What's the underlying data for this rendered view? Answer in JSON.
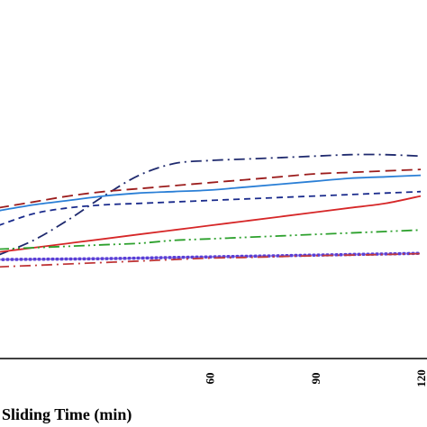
{
  "chart_data": {
    "type": "line",
    "title": "",
    "xlabel": "Sliding Time (min)",
    "ylabel": "",
    "xlim": [
      0,
      120
    ],
    "ylim": [
      0,
      1
    ],
    "x_ticks": [
      60,
      90,
      120
    ],
    "x_tick_labels": [
      "60",
      "90",
      "120"
    ],
    "grid": false,
    "legend": "none",
    "series": [
      {
        "color": "#1f2a6e",
        "style": "dash-dot",
        "x": [
          0,
          10,
          20,
          30,
          40,
          50,
          60,
          70,
          80,
          90,
          100,
          110,
          120
        ],
        "y": [
          0.35,
          0.4,
          0.47,
          0.55,
          0.62,
          0.66,
          0.67,
          0.675,
          0.68,
          0.685,
          0.69,
          0.69,
          0.685
        ]
      },
      {
        "color": "#9b1c1c",
        "style": "dashed",
        "x": [
          0,
          10,
          20,
          30,
          40,
          50,
          60,
          70,
          80,
          90,
          100,
          110,
          120
        ],
        "y": [
          0.51,
          0.53,
          0.55,
          0.565,
          0.575,
          0.585,
          0.595,
          0.605,
          0.615,
          0.625,
          0.63,
          0.635,
          0.64
        ]
      },
      {
        "color": "#2a7fd6",
        "style": "solid",
        "x": [
          0,
          10,
          20,
          30,
          40,
          50,
          60,
          70,
          80,
          90,
          100,
          110,
          120
        ],
        "y": [
          0.5,
          0.52,
          0.535,
          0.55,
          0.56,
          0.565,
          0.57,
          0.58,
          0.59,
          0.6,
          0.61,
          0.615,
          0.62
        ]
      },
      {
        "color": "#1a2b8c",
        "style": "dashed-short",
        "x": [
          0,
          10,
          20,
          30,
          40,
          50,
          60,
          70,
          80,
          90,
          100,
          110,
          120
        ],
        "y": [
          0.45,
          0.49,
          0.51,
          0.52,
          0.525,
          0.53,
          0.535,
          0.54,
          0.545,
          0.55,
          0.555,
          0.56,
          0.565
        ]
      },
      {
        "color": "#d62728",
        "style": "solid",
        "x": [
          0,
          10,
          20,
          30,
          40,
          50,
          60,
          70,
          80,
          90,
          100,
          110,
          120
        ],
        "y": [
          0.36,
          0.375,
          0.39,
          0.405,
          0.42,
          0.435,
          0.45,
          0.465,
          0.48,
          0.495,
          0.51,
          0.525,
          0.55
        ]
      },
      {
        "color": "#2ca02c",
        "style": "dash-dot-dot",
        "x": [
          0,
          10,
          20,
          30,
          40,
          50,
          60,
          70,
          80,
          90,
          100,
          110,
          120
        ],
        "y": [
          0.37,
          0.375,
          0.38,
          0.385,
          0.39,
          0.4,
          0.405,
          0.41,
          0.415,
          0.42,
          0.425,
          0.43,
          0.435
        ]
      },
      {
        "color": "#5a3fd6",
        "style": "dotted",
        "x": [
          0,
          10,
          20,
          30,
          40,
          50,
          60,
          70,
          80,
          90,
          100,
          110,
          120
        ],
        "y": [
          0.335,
          0.336,
          0.337,
          0.338,
          0.34,
          0.342,
          0.344,
          0.346,
          0.348,
          0.35,
          0.352,
          0.354,
          0.356
        ]
      },
      {
        "color": "#c0393b",
        "style": "dash-dot",
        "x": [
          0,
          10,
          20,
          30,
          40,
          50,
          60,
          70,
          80,
          90,
          100,
          110,
          120
        ],
        "y": [
          0.31,
          0.315,
          0.32,
          0.325,
          0.33,
          0.335,
          0.34,
          0.342,
          0.345,
          0.348,
          0.35,
          0.352,
          0.355
        ]
      }
    ]
  }
}
